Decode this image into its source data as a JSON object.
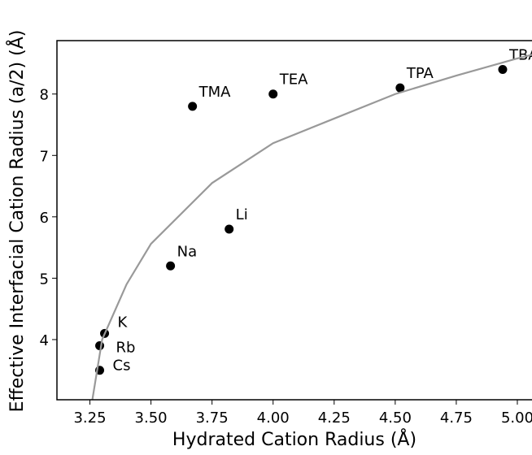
{
  "chart_data": {
    "type": "scatter",
    "x_label": "Hydrated Cation Radius (Å)",
    "y_label": "Effective Interfacial Cation Radius (a/2) (Å)",
    "xlim": [
      3.115,
      5.08
    ],
    "ylim": [
      3.02,
      8.87
    ],
    "xticks": [
      {
        "value": 3.25,
        "label": "3.25"
      },
      {
        "value": 3.5,
        "label": "3.50"
      },
      {
        "value": 3.75,
        "label": "3.75"
      },
      {
        "value": 4.0,
        "label": "4.00"
      },
      {
        "value": 4.25,
        "label": "4.25"
      },
      {
        "value": 4.5,
        "label": "4.50"
      },
      {
        "value": 4.75,
        "label": "4.75"
      },
      {
        "value": 5.0,
        "label": "5.00"
      }
    ],
    "yticks": [
      4,
      5,
      6,
      7,
      8
    ],
    "series": [
      {
        "kind": "points",
        "color": "#000000",
        "labels": [
          "Cs",
          "Rb",
          "K",
          "Na",
          "Li",
          "TMA",
          "TEA",
          "TPA",
          "TBA"
        ],
        "x": [
          3.29,
          3.29,
          3.31,
          3.58,
          3.82,
          3.67,
          4.0,
          4.52,
          4.94
        ],
        "values": [
          3.5,
          3.9,
          4.1,
          5.2,
          5.8,
          7.8,
          8.0,
          8.1,
          8.4
        ]
      },
      {
        "kind": "line",
        "color": "#999999",
        "x": [
          3.26,
          3.3,
          3.4,
          3.5,
          3.75,
          4.0,
          4.25,
          4.5,
          4.75,
          5.0,
          5.08
        ],
        "values": [
          3.02,
          4.0,
          4.9,
          5.56,
          6.55,
          7.2,
          7.6,
          8.0,
          8.3,
          8.58,
          8.66
        ]
      }
    ]
  }
}
